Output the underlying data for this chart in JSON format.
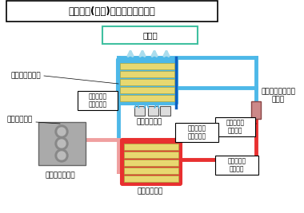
{
  "title": "エアコン(冷房)システム基本構成",
  "bg_color": "#f0f0f0",
  "fig_bg": "#e8e8e8",
  "car_interior_label": "車室内",
  "evaporator_label": "エバポレーター",
  "blower_label": "ブロアファン",
  "compressor_label": "コンプレッサー",
  "condenser_label": "コンデンサー",
  "expansion_label": "エキスパンジョン\nバルブ",
  "clutch_label": "電磁クラッチ",
  "low_gas_label": "低温・低圧\nガス状冷媒",
  "low_mist_label": "低温・低圧\n霧状冷媒",
  "high_gas_label": "高温・高圧\nガス状冷媒",
  "high_liquid_label": "高温・高圧\n液状冷媒",
  "blue_color": "#4db8e8",
  "red_color": "#e83030",
  "pink_color": "#f0a0a0",
  "dark_blue": "#1060c0",
  "teal_color": "#40c0a0",
  "yellow_color": "#e8d870",
  "gray_color": "#888888",
  "dark_red": "#c00000",
  "box_gray": "#f5f5f5"
}
